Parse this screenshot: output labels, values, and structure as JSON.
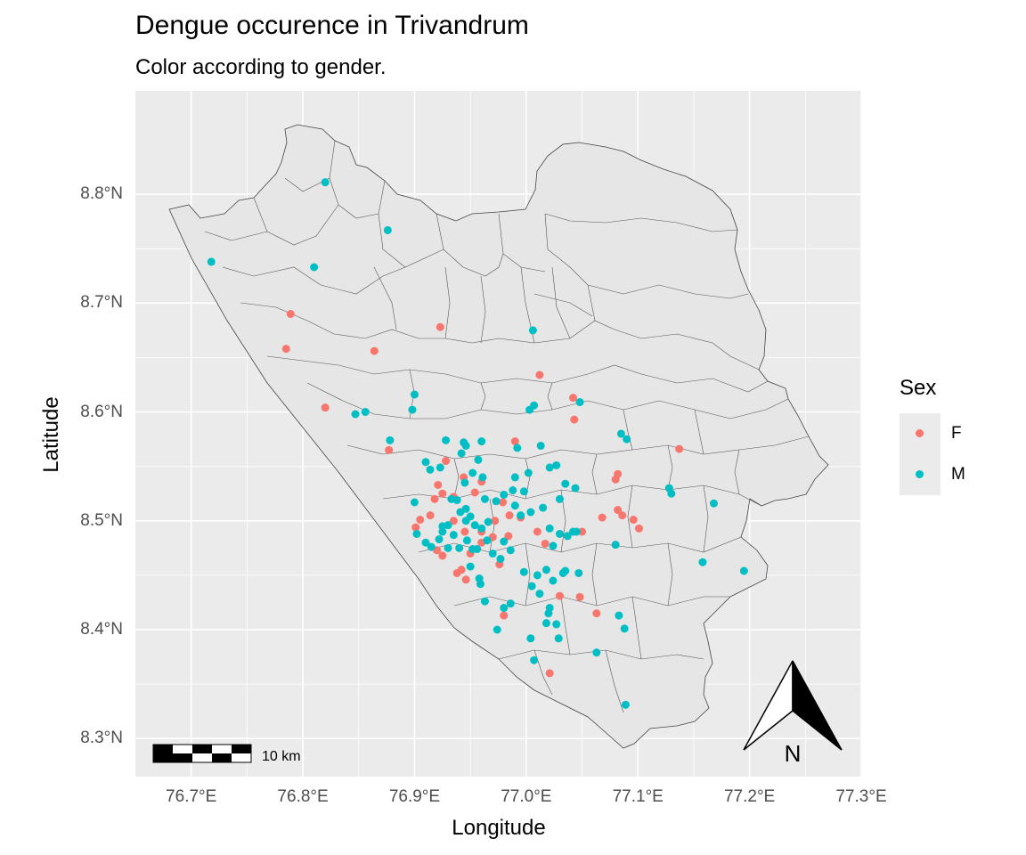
{
  "title": "Dengue occurence in Trivandrum",
  "subtitle": "Color according to gender.",
  "chart_data": {
    "type": "scatter",
    "xlabel": "Longitude",
    "ylabel": "Latitude",
    "xlim": [
      76.65,
      77.3
    ],
    "ylim": [
      8.265,
      8.895
    ],
    "x_ticks": [
      "76.7°E",
      "76.8°E",
      "76.9°E",
      "77.0°E",
      "77.1°E",
      "77.2°E",
      "77.3°E"
    ],
    "y_ticks": [
      "8.3°N",
      "8.4°N",
      "8.5°N",
      "8.6°N",
      "8.7°N",
      "8.8°N"
    ],
    "x_tick_values": [
      76.7,
      76.8,
      76.9,
      77.0,
      77.1,
      77.2,
      77.3
    ],
    "y_tick_values": [
      8.3,
      8.4,
      8.5,
      8.6,
      8.7,
      8.8
    ],
    "grid": true,
    "legend_title": "Sex",
    "legend_placement": "right",
    "series": [
      {
        "name": "F",
        "color": "#F8766D",
        "points": [
          [
            76.785,
            8.658
          ],
          [
            76.789,
            8.69
          ],
          [
            76.82,
            8.604
          ],
          [
            76.864,
            8.656
          ],
          [
            76.877,
            8.565
          ],
          [
            76.923,
            8.678
          ],
          [
            77.012,
            8.634
          ],
          [
            77.042,
            8.613
          ],
          [
            77.043,
            8.593
          ],
          [
            76.99,
            8.573
          ],
          [
            77.137,
            8.566
          ],
          [
            77.082,
            8.543
          ],
          [
            77.08,
            8.538
          ],
          [
            77.082,
            8.51
          ],
          [
            77.086,
            8.505
          ],
          [
            77.096,
            8.501
          ],
          [
            77.101,
            8.493
          ],
          [
            77.068,
            8.503
          ],
          [
            77.05,
            8.49
          ],
          [
            76.96,
            8.536
          ],
          [
            76.954,
            8.526
          ],
          [
            76.944,
            8.54
          ],
          [
            76.935,
            8.522
          ],
          [
            76.921,
            8.533
          ],
          [
            76.918,
            8.52
          ],
          [
            76.905,
            8.501
          ],
          [
            76.901,
            8.494
          ],
          [
            76.914,
            8.505
          ],
          [
            76.925,
            8.525
          ],
          [
            76.928,
            8.555
          ],
          [
            76.935,
            8.5
          ],
          [
            76.945,
            8.49
          ],
          [
            76.95,
            8.47
          ],
          [
            76.942,
            8.455
          ],
          [
            76.946,
            8.446
          ],
          [
            76.938,
            8.452
          ],
          [
            76.925,
            8.468
          ],
          [
            76.92,
            8.473
          ],
          [
            76.96,
            8.48
          ],
          [
            76.972,
            8.5
          ],
          [
            76.985,
            8.505
          ],
          [
            76.995,
            8.503
          ],
          [
            76.979,
            8.517
          ],
          [
            76.97,
            8.485
          ],
          [
            76.976,
            8.46
          ],
          [
            77.01,
            8.49
          ],
          [
            77.017,
            8.479
          ],
          [
            77.03,
            8.431
          ],
          [
            77.048,
            8.43
          ],
          [
            77.021,
            8.36
          ],
          [
            77.063,
            8.415
          ],
          [
            76.98,
            8.413
          ],
          [
            76.984,
            8.486
          ],
          [
            76.96,
            8.49
          ]
        ]
      },
      {
        "name": "M",
        "color": "#00BFC4",
        "points": [
          [
            76.718,
            8.738
          ],
          [
            76.81,
            8.733
          ],
          [
            76.82,
            8.811
          ],
          [
            76.876,
            8.767
          ],
          [
            77.006,
            8.675
          ],
          [
            76.9,
            8.616
          ],
          [
            76.898,
            8.602
          ],
          [
            76.856,
            8.6
          ],
          [
            76.847,
            8.598
          ],
          [
            76.878,
            8.574
          ],
          [
            77.007,
            8.606
          ],
          [
            77.003,
            8.602
          ],
          [
            77.048,
            8.609
          ],
          [
            77.085,
            8.58
          ],
          [
            77.09,
            8.575
          ],
          [
            77.013,
            8.569
          ],
          [
            77.128,
            8.53
          ],
          [
            77.13,
            8.525
          ],
          [
            77.168,
            8.516
          ],
          [
            77.158,
            8.462
          ],
          [
            77.195,
            8.454
          ],
          [
            77.08,
            8.478
          ],
          [
            77.083,
            8.413
          ],
          [
            77.088,
            8.401
          ],
          [
            77.089,
            8.331
          ],
          [
            77.063,
            8.379
          ],
          [
            77.047,
            8.452
          ],
          [
            77.042,
            8.49
          ],
          [
            77.037,
            8.486
          ],
          [
            77.03,
            8.52
          ],
          [
            77.035,
            8.534
          ],
          [
            77.027,
            8.551
          ],
          [
            77.021,
            8.549
          ],
          [
            77.002,
            8.544
          ],
          [
            76.99,
            8.54
          ],
          [
            76.988,
            8.528
          ],
          [
            76.998,
            8.527
          ],
          [
            76.99,
            8.514
          ],
          [
            76.995,
            8.505
          ],
          [
            77.004,
            8.508
          ],
          [
            77.015,
            8.512
          ],
          [
            77.021,
            8.493
          ],
          [
            77.024,
            8.477
          ],
          [
            77.03,
            8.488
          ],
          [
            77.035,
            8.454
          ],
          [
            77.033,
            8.452
          ],
          [
            77.024,
            8.445
          ],
          [
            77.018,
            8.455
          ],
          [
            77.01,
            8.45
          ],
          [
            76.998,
            8.453
          ],
          [
            77.005,
            8.44
          ],
          [
            77.012,
            8.433
          ],
          [
            77.02,
            8.415
          ],
          [
            77.021,
            8.42
          ],
          [
            77.027,
            8.405
          ],
          [
            77.029,
            8.392
          ],
          [
            77.018,
            8.406
          ],
          [
            77.004,
            8.392
          ],
          [
            77.007,
            8.372
          ],
          [
            76.98,
            8.42
          ],
          [
            76.986,
            8.424
          ],
          [
            76.974,
            8.4
          ],
          [
            76.963,
            8.426
          ],
          [
            76.959,
            8.442
          ],
          [
            76.958,
            8.447
          ],
          [
            76.95,
            8.458
          ],
          [
            76.952,
            8.474
          ],
          [
            76.956,
            8.474
          ],
          [
            76.96,
            8.493
          ],
          [
            76.966,
            8.499
          ],
          [
            76.963,
            8.52
          ],
          [
            76.961,
            8.54
          ],
          [
            76.957,
            8.556
          ],
          [
            76.96,
            8.573
          ],
          [
            76.944,
            8.572
          ],
          [
            76.946,
            8.569
          ],
          [
            76.942,
            8.562
          ],
          [
            76.945,
            8.535
          ],
          [
            76.952,
            8.544
          ],
          [
            76.938,
            8.519
          ],
          [
            76.933,
            8.52
          ],
          [
            76.928,
            8.574
          ],
          [
            76.923,
            8.549
          ],
          [
            76.914,
            8.547
          ],
          [
            76.91,
            8.554
          ],
          [
            76.9,
            8.517
          ],
          [
            76.902,
            8.488
          ],
          [
            76.91,
            8.48
          ],
          [
            76.915,
            8.476
          ],
          [
            76.922,
            8.483
          ],
          [
            76.925,
            8.49
          ],
          [
            76.93,
            8.496
          ],
          [
            76.935,
            8.487
          ],
          [
            76.941,
            8.508
          ],
          [
            76.946,
            8.511
          ],
          [
            76.946,
            8.5
          ],
          [
            76.95,
            8.504
          ],
          [
            76.954,
            8.496
          ],
          [
            76.965,
            8.482
          ],
          [
            76.97,
            8.47
          ],
          [
            76.977,
            8.465
          ],
          [
            76.98,
            8.481
          ],
          [
            76.986,
            8.473
          ],
          [
            76.973,
            8.518
          ],
          [
            76.98,
            8.524
          ],
          [
            76.992,
            8.567
          ],
          [
            77.044,
            8.53
          ],
          [
            77.045,
            8.49
          ],
          [
            76.93,
            8.475
          ],
          [
            76.925,
            8.495
          ],
          [
            76.947,
            8.482
          ],
          [
            76.94,
            8.475
          ]
        ]
      }
    ]
  },
  "scalebar": {
    "label": "10 km"
  },
  "north_arrow": {
    "label": "N"
  }
}
